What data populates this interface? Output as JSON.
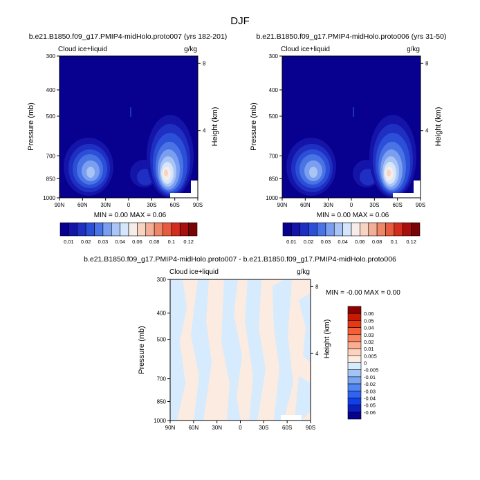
{
  "page": {
    "title": "DJF"
  },
  "colors": {
    "abs_palette": [
      "#08008f",
      "#1414a8",
      "#1e2fc2",
      "#2b4fd6",
      "#4a74e6",
      "#7a9ef0",
      "#aac4f5",
      "#d4e6fb",
      "#f6ecea",
      "#f7d3c2",
      "#f3ae97",
      "#ee8668",
      "#e75c40",
      "#d12e1d",
      "#a8100d",
      "#7a0403"
    ],
    "diff_palette": [
      "#06008a",
      "#0b1fc1",
      "#1240e6",
      "#2f63f2",
      "#5286f3",
      "#79a5f2",
      "#a2c4f7",
      "#d6ebfd",
      "#fbebe0",
      "#fdd3be",
      "#fbad8f",
      "#f98660",
      "#f45f36",
      "#e83810",
      "#c61a02",
      "#8f0000"
    ]
  },
  "panel_top_left": {
    "title": "b.e21.B1850.f09_g17.PMIP4-midHolo.proto007 (yrs 182-201)",
    "left_label": "Cloud ice+liquid",
    "right_label": "g/kg",
    "ylabel": "Pressure (mb)",
    "ylabel_right": "Height (km)",
    "stats": "MIN =  0.00   MAX =  0.06"
  },
  "panel_top_right": {
    "title": "b.e21.B1850.f09_g17.PMIP4-midHolo.proto006 (yrs 31-50)",
    "left_label": "Cloud ice+liquid",
    "right_label": "g/kg",
    "ylabel": "Pressure (mb)",
    "ylabel_right": "Height (km)",
    "stats": "MIN =  0.00   MAX =  0.06"
  },
  "panel_bottom": {
    "title": "b.e21.B1850.f09_g17.PMIP4-midHolo.proto007 - b.e21.B1850.f09_g17.PMIP4-midHolo.proto006",
    "left_label": "Cloud ice+liquid",
    "right_label": "g/kg",
    "ylabel": "Pressure (mb)",
    "ylabel_right": "Height (km)",
    "stats": "MIN = -0.00   MAX =  0.00"
  },
  "chart_data": [
    {
      "type": "heatmap",
      "title": "b.e21.B1850.f09_g17.PMIP4-midHolo.proto007 (yrs 182-201)",
      "xlabel": "",
      "ylabel": "Pressure (mb)",
      "x_ticks": [
        "90N",
        "60N",
        "30N",
        "0",
        "30S",
        "60S",
        "90S"
      ],
      "y_ticks": [
        300,
        400,
        500,
        700,
        850,
        1000
      ],
      "y2_ticks": [
        8,
        4
      ],
      "y2label": "Height (km)",
      "ylim": [
        1000,
        300
      ],
      "scale_y": "log",
      "colorbar_labels": [
        "0.01",
        "0.02",
        "0.03",
        "0.04",
        "0.06",
        "0.08",
        "0.1",
        "0.12"
      ],
      "min": 0.0,
      "max": 0.06,
      "features": [
        {
          "lat": -52,
          "p": 840,
          "value": 0.06
        },
        {
          "lat": 60,
          "p": 820,
          "value": 0.04
        }
      ]
    },
    {
      "type": "heatmap",
      "title": "b.e21.B1850.f09_g17.PMIP4-midHolo.proto006 (yrs 31-50)",
      "xlabel": "",
      "ylabel": "Pressure (mb)",
      "x_ticks": [
        "90N",
        "60N",
        "30N",
        "0",
        "30S",
        "60S",
        "90S"
      ],
      "y_ticks": [
        300,
        400,
        500,
        700,
        850,
        1000
      ],
      "y2_ticks": [
        8,
        4
      ],
      "y2label": "Height (km)",
      "ylim": [
        1000,
        300
      ],
      "scale_y": "log",
      "colorbar_labels": [
        "0.01",
        "0.02",
        "0.03",
        "0.04",
        "0.06",
        "0.08",
        "0.1",
        "0.12"
      ],
      "min": 0.0,
      "max": 0.06,
      "features": [
        {
          "lat": -52,
          "p": 840,
          "value": 0.06
        },
        {
          "lat": 60,
          "p": 820,
          "value": 0.04
        }
      ]
    },
    {
      "type": "heatmap",
      "title": "b.e21.B1850.f09_g17.PMIP4-midHolo.proto007 - b.e21.B1850.f09_g17.PMIP4-midHolo.proto006",
      "xlabel": "",
      "ylabel": "Pressure (mb)",
      "x_ticks": [
        "90N",
        "60N",
        "30N",
        "0",
        "30S",
        "60S",
        "90S"
      ],
      "y_ticks": [
        300,
        400,
        500,
        700,
        850,
        1000
      ],
      "y2_ticks": [
        8,
        4
      ],
      "y2label": "Height (km)",
      "ylim": [
        1000,
        300
      ],
      "scale_y": "log",
      "colorbar_labels": [
        "0.06",
        "0.05",
        "0.04",
        "0.03",
        "0.02",
        "0.01",
        "0.005",
        "0",
        "-0.005",
        "-0.01",
        "-0.02",
        "-0.03",
        "-0.04",
        "-0.05",
        "-0.06"
      ],
      "min": -0.0,
      "max": 0.0
    }
  ]
}
